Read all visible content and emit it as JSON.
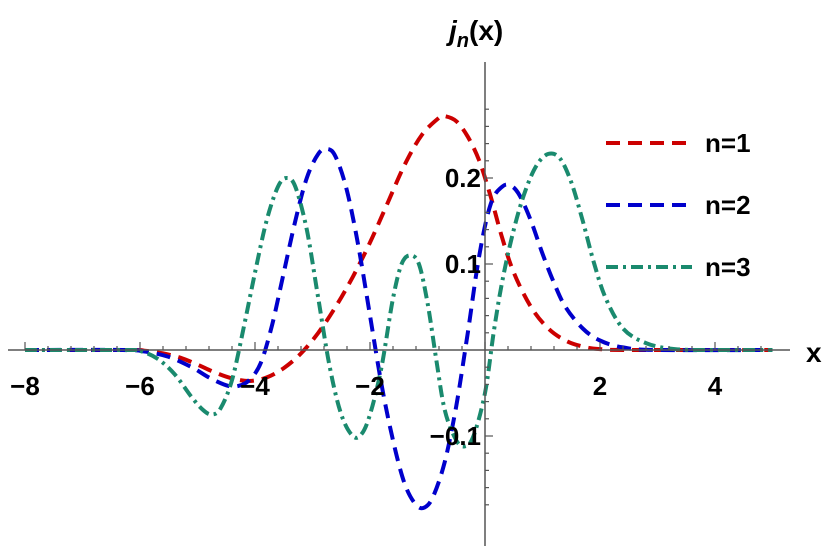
{
  "chart_data": {
    "type": "line",
    "title": "",
    "xlabel": "x",
    "ylabel_base": "j",
    "ylabel_sub": "n",
    "ylabel_rest": "(x)",
    "xlim": [
      -8.3,
      5.0
    ],
    "ylim": [
      -0.19,
      0.28
    ],
    "x_ticks": [
      {
        "value": -8,
        "label": "−8"
      },
      {
        "value": -6,
        "label": "−6"
      },
      {
        "value": -4,
        "label": "−4"
      },
      {
        "value": -2,
        "label": "−2"
      },
      {
        "value": 2,
        "label": "2"
      },
      {
        "value": 4,
        "label": "4"
      }
    ],
    "y_ticks": [
      {
        "value": 0.2,
        "label": "0.2"
      },
      {
        "value": 0.1,
        "label": "0.1"
      },
      {
        "value": -0.1,
        "label": "−0.1"
      }
    ],
    "grid": false,
    "legend_position": "right",
    "series": [
      {
        "name": "n=1",
        "color": "#cc0000",
        "dash": "dashed",
        "points": [
          [
            -8,
            0
          ],
          [
            -6.2,
            0
          ],
          [
            -5.9,
            -0.001
          ],
          [
            -5.6,
            -0.004
          ],
          [
            -5.3,
            -0.009
          ],
          [
            -5.0,
            -0.017
          ],
          [
            -4.7,
            -0.026
          ],
          [
            -4.4,
            -0.033
          ],
          [
            -4.1,
            -0.036
          ],
          [
            -3.8,
            -0.032
          ],
          [
            -3.5,
            -0.021
          ],
          [
            -3.2,
            -0.004
          ],
          [
            -2.9,
            0.02
          ],
          [
            -2.6,
            0.05
          ],
          [
            -2.3,
            0.085
          ],
          [
            -2.0,
            0.125
          ],
          [
            -1.7,
            0.17
          ],
          [
            -1.4,
            0.215
          ],
          [
            -1.1,
            0.25
          ],
          [
            -0.8,
            0.27
          ],
          [
            -0.7,
            0.272
          ],
          [
            -0.5,
            0.266
          ],
          [
            -0.3,
            0.248
          ],
          [
            -0.1,
            0.22
          ],
          [
            0.1,
            0.178
          ],
          [
            0.3,
            0.13
          ],
          [
            0.5,
            0.09
          ],
          [
            0.8,
            0.05
          ],
          [
            1.1,
            0.025
          ],
          [
            1.4,
            0.011
          ],
          [
            1.7,
            0.004
          ],
          [
            2.0,
            0.001
          ],
          [
            2.5,
            0
          ],
          [
            5,
            0
          ]
        ]
      },
      {
        "name": "n=2",
        "color": "#0000cc",
        "dash": "dashed",
        "points": [
          [
            -8,
            0
          ],
          [
            -6.3,
            0
          ],
          [
            -5.9,
            -0.002
          ],
          [
            -5.5,
            -0.008
          ],
          [
            -5.1,
            -0.02
          ],
          [
            -4.8,
            -0.032
          ],
          [
            -4.5,
            -0.041
          ],
          [
            -4.3,
            -0.042
          ],
          [
            -4.1,
            -0.035
          ],
          [
            -3.9,
            -0.015
          ],
          [
            -3.7,
            0.03
          ],
          [
            -3.5,
            0.09
          ],
          [
            -3.3,
            0.15
          ],
          [
            -3.1,
            0.2
          ],
          [
            -2.9,
            0.228
          ],
          [
            -2.75,
            0.234
          ],
          [
            -2.6,
            0.225
          ],
          [
            -2.4,
            0.185
          ],
          [
            -2.2,
            0.12
          ],
          [
            -2.0,
            0.04
          ],
          [
            -1.8,
            -0.04
          ],
          [
            -1.6,
            -0.105
          ],
          [
            -1.4,
            -0.155
          ],
          [
            -1.2,
            -0.18
          ],
          [
            -1.05,
            -0.183
          ],
          [
            -0.9,
            -0.17
          ],
          [
            -0.7,
            -0.13
          ],
          [
            -0.5,
            -0.065
          ],
          [
            -0.3,
            0.02
          ],
          [
            -0.1,
            0.11
          ],
          [
            0.1,
            0.17
          ],
          [
            0.3,
            0.19
          ],
          [
            0.45,
            0.191
          ],
          [
            0.6,
            0.18
          ],
          [
            0.8,
            0.15
          ],
          [
            1.0,
            0.112
          ],
          [
            1.2,
            0.078
          ],
          [
            1.4,
            0.05
          ],
          [
            1.7,
            0.025
          ],
          [
            2.0,
            0.011
          ],
          [
            2.4,
            0.003
          ],
          [
            3.0,
            0
          ],
          [
            5,
            0
          ]
        ]
      },
      {
        "name": "n=3",
        "color": "#1a8a6e",
        "dash": "dashdot",
        "points": [
          [
            -8,
            0
          ],
          [
            -6.2,
            0
          ],
          [
            -6.0,
            -0.001
          ],
          [
            -5.7,
            -0.01
          ],
          [
            -5.4,
            -0.028
          ],
          [
            -5.1,
            -0.055
          ],
          [
            -4.9,
            -0.07
          ],
          [
            -4.75,
            -0.075
          ],
          [
            -4.6,
            -0.068
          ],
          [
            -4.4,
            -0.035
          ],
          [
            -4.2,
            0.025
          ],
          [
            -4.0,
            0.09
          ],
          [
            -3.8,
            0.15
          ],
          [
            -3.6,
            0.19
          ],
          [
            -3.45,
            0.2
          ],
          [
            -3.3,
            0.19
          ],
          [
            -3.1,
            0.14
          ],
          [
            -2.9,
            0.06
          ],
          [
            -2.7,
            -0.02
          ],
          [
            -2.5,
            -0.075
          ],
          [
            -2.3,
            -0.1
          ],
          [
            -2.15,
            -0.098
          ],
          [
            -2.0,
            -0.075
          ],
          [
            -1.8,
            -0.02
          ],
          [
            -1.6,
            0.06
          ],
          [
            -1.45,
            0.1
          ],
          [
            -1.3,
            0.11
          ],
          [
            -1.15,
            0.1
          ],
          [
            -1.0,
            0.055
          ],
          [
            -0.85,
            -0.01
          ],
          [
            -0.7,
            -0.07
          ],
          [
            -0.5,
            -0.105
          ],
          [
            -0.35,
            -0.112
          ],
          [
            -0.2,
            -0.1
          ],
          [
            0.0,
            -0.05
          ],
          [
            0.15,
            0.02
          ],
          [
            0.3,
            0.08
          ],
          [
            0.5,
            0.14
          ],
          [
            0.7,
            0.185
          ],
          [
            0.9,
            0.215
          ],
          [
            1.1,
            0.228
          ],
          [
            1.3,
            0.223
          ],
          [
            1.5,
            0.195
          ],
          [
            1.7,
            0.15
          ],
          [
            1.9,
            0.1
          ],
          [
            2.1,
            0.06
          ],
          [
            2.4,
            0.025
          ],
          [
            2.8,
            0.008
          ],
          [
            3.3,
            0.001
          ],
          [
            4,
            0
          ],
          [
            5,
            0
          ]
        ]
      }
    ]
  }
}
